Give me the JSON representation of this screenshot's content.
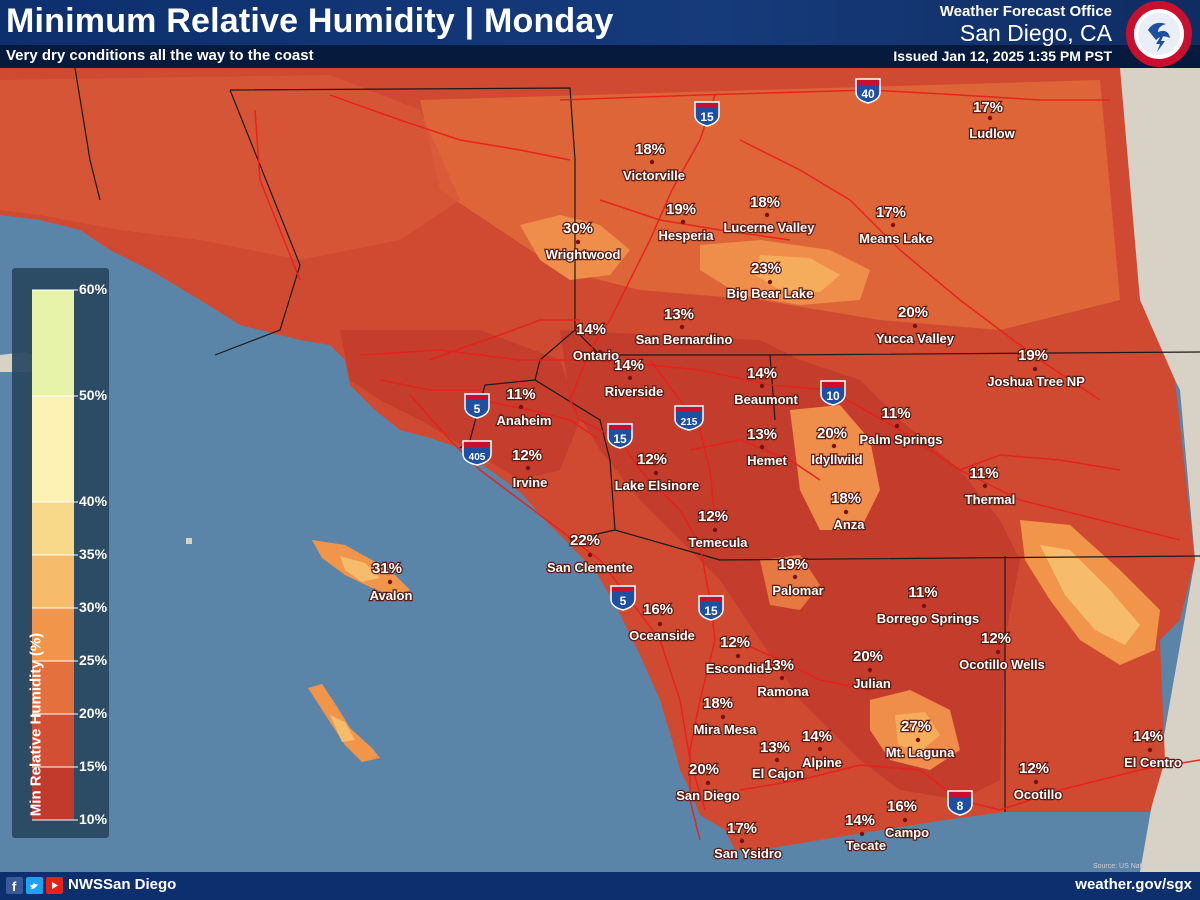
{
  "header": {
    "title": "Minimum Relative Humidity | Monday",
    "subtitle": "Very dry conditions all the way to the coast",
    "office_line1": "Weather Forecast Office",
    "office_line2": "San Diego, CA",
    "issued": "Issued Jan 12, 2025 1:35 PM PST",
    "logo_text": "NATIONAL WEATHER SERVICE"
  },
  "legend": {
    "title": "Min Relative Humidity (%)",
    "ticks": [
      "60%",
      "50%",
      "40%",
      "35%",
      "30%",
      "25%",
      "20%",
      "15%",
      "10%"
    ],
    "colors": [
      "#e7f3a8",
      "#fbf2b3",
      "#f8d98a",
      "#f6bb6b",
      "#f0954a",
      "#e4703d",
      "#d34f34",
      "#c23a2c"
    ]
  },
  "highways": [
    "15",
    "40",
    "10",
    "5",
    "405",
    "15",
    "215",
    "5",
    "15",
    "8"
  ],
  "locations": [
    {
      "name": "Ludlow",
      "rh": "17%"
    },
    {
      "name": "Victorville",
      "rh": "18%"
    },
    {
      "name": "Hesperia",
      "rh": "19%"
    },
    {
      "name": "Lucerne Valley",
      "rh": "18%"
    },
    {
      "name": "Means Lake",
      "rh": "17%"
    },
    {
      "name": "Wrightwood",
      "rh": "30%"
    },
    {
      "name": "Big Bear Lake",
      "rh": "23%"
    },
    {
      "name": "Ontario",
      "rh": "14%"
    },
    {
      "name": "San Bernardino",
      "rh": "13%"
    },
    {
      "name": "Yucca Valley",
      "rh": "20%"
    },
    {
      "name": "Joshua Tree NP",
      "rh": "19%"
    },
    {
      "name": "Riverside",
      "rh": "14%"
    },
    {
      "name": "Beaumont",
      "rh": "14%"
    },
    {
      "name": "Anaheim",
      "rh": "11%"
    },
    {
      "name": "Palm Springs",
      "rh": "11%"
    },
    {
      "name": "Hemet",
      "rh": "13%"
    },
    {
      "name": "Idyllwild",
      "rh": "20%"
    },
    {
      "name": "Irvine",
      "rh": "12%"
    },
    {
      "name": "Lake Elsinore",
      "rh": "12%"
    },
    {
      "name": "Thermal",
      "rh": "11%"
    },
    {
      "name": "Anza",
      "rh": "18%"
    },
    {
      "name": "Temecula",
      "rh": "12%"
    },
    {
      "name": "San Clemente",
      "rh": "22%"
    },
    {
      "name": "Avalon",
      "rh": "31%"
    },
    {
      "name": "Palomar",
      "rh": "19%"
    },
    {
      "name": "Oceanside",
      "rh": "16%"
    },
    {
      "name": "Borrego Springs",
      "rh": "11%"
    },
    {
      "name": "Escondido",
      "rh": "12%"
    },
    {
      "name": "Ocotillo Wells",
      "rh": "12%"
    },
    {
      "name": "Ramona",
      "rh": "13%"
    },
    {
      "name": "Julian",
      "rh": "20%"
    },
    {
      "name": "Mira Mesa",
      "rh": "18%"
    },
    {
      "name": "Mt. Laguna",
      "rh": "27%"
    },
    {
      "name": "El Cajon",
      "rh": "13%"
    },
    {
      "name": "Alpine",
      "rh": "14%"
    },
    {
      "name": "El Centro",
      "rh": "14%"
    },
    {
      "name": "San Diego",
      "rh": "20%"
    },
    {
      "name": "Ocotillo",
      "rh": "12%"
    },
    {
      "name": "San Ysidro",
      "rh": "17%"
    },
    {
      "name": "Tecate",
      "rh": "14%"
    },
    {
      "name": "Campo",
      "rh": "16%"
    }
  ],
  "footer": {
    "handle": "NWSSan Diego",
    "website": "weather.gov/sgx",
    "credit": "Source: US National Park Service"
  },
  "colors": {
    "header": "#0d2f6e",
    "ocean": "#5b85a8",
    "terrain": "#d9d3c8"
  }
}
